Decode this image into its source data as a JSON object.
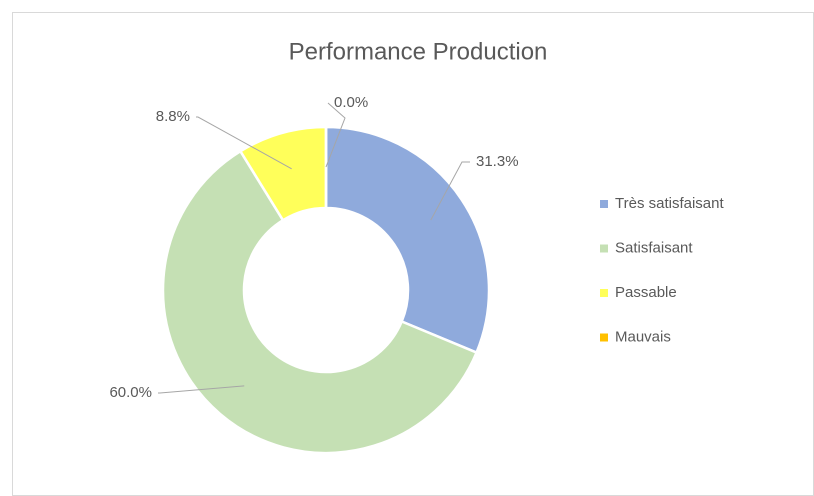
{
  "chart_data": {
    "type": "doughnut",
    "title": "Performance Production",
    "categories": [
      "Très satisfaisant",
      "Satisfaisant",
      "Passable",
      "Mauvais"
    ],
    "values": [
      31.3,
      60.0,
      8.8,
      0.0
    ],
    "value_labels": [
      "31.3%",
      "60.0%",
      "8.8%",
      "0.0%"
    ],
    "colors": [
      "#8faadc",
      "#c5e0b4",
      "#ffff5a",
      "#ffc000"
    ],
    "legend": "right"
  }
}
